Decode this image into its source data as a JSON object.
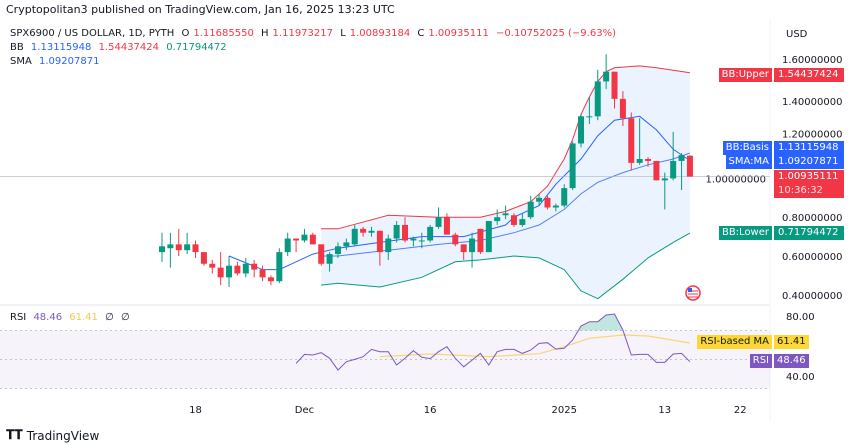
{
  "header": {
    "publisher": "Cryptopolitan3 published on TradingView.com, Jan 16, 2025 13:23 UTC",
    "symbol": "SPX6900 / US DOLLAR, 1D, PYTH",
    "open_label": "O",
    "open": "1.11685550",
    "high_label": "H",
    "high": "1.11973217",
    "low_label": "L",
    "low": "1.00893184",
    "close_label": "C",
    "close": "1.00935111",
    "change": "−0.10752025 (−9.63%)",
    "bb_label": "BB",
    "bb_basis": "1.13115948",
    "bb_upper": "1.54437424",
    "bb_lower": "0.71794472",
    "sma_label": "SMA",
    "sma": "1.09207871"
  },
  "currency": "USD",
  "price_axis": [
    "1.60000000",
    "1.40000000",
    "1.20000000",
    "1.00000000",
    "0.80000000",
    "0.60000000",
    "0.40000000"
  ],
  "badges": {
    "bb_upper": {
      "label": "BB:Upper",
      "value": "1.54437424"
    },
    "bb_basis": {
      "label": "BB:Basis",
      "value": "1.13115948"
    },
    "sma": {
      "label": "SMA:MA",
      "value": "1.09207871"
    },
    "price": {
      "value": "1.00935111",
      "countdown": "10:36:32"
    },
    "bb_lower": {
      "label": "BB:Lower",
      "value": "0.71794472"
    },
    "rsi_ma": {
      "label": "RSI-based MA",
      "value": "61.41"
    },
    "rsi": {
      "label": "RSI",
      "value": "48.46"
    }
  },
  "rsi_legend": {
    "label": "RSI",
    "rsi": "48.46",
    "ma": "61.41",
    "x1": "∅",
    "x2": "∅"
  },
  "rsi_axis": [
    "80.00",
    "40.00"
  ],
  "time_axis": [
    {
      "date": "2024-11-18",
      "label": "18"
    },
    {
      "date": "2024-12-01",
      "label": "Dec"
    },
    {
      "date": "2024-12-16",
      "label": "16"
    },
    {
      "date": "2025-01-01",
      "label": "2025"
    },
    {
      "date": "2025-01-13",
      "label": "13"
    },
    {
      "date": "2025-01-22",
      "label": "22"
    }
  ],
  "branding": "TradingView",
  "colors": {
    "up": "#089981",
    "down": "#f23645",
    "bb_upper": "#f23645",
    "bb_lower": "#089981",
    "bb_basis": "#2962ff",
    "sma": "#2962ff",
    "band_fill": "#e3effd",
    "rsi": "#7e57c2",
    "rsi_ma": "#f7d774",
    "rsi_badge": "#7e57c2",
    "rsi_ma_badge": "#fdd835"
  },
  "chart_data": [
    {
      "type": "candlestick",
      "title": "SPX6900 / US DOLLAR, 1D, PYTH",
      "ylabel": "USD",
      "ylim": [
        0.35,
        1.7
      ],
      "columns": [
        "date",
        "open",
        "high",
        "low",
        "close"
      ],
      "candles": [
        [
          "2024-11-14",
          0.62,
          0.72,
          0.57,
          0.65
        ],
        [
          "2024-11-15",
          0.64,
          0.72,
          0.54,
          0.66
        ],
        [
          "2024-11-16",
          0.66,
          0.74,
          0.6,
          0.63
        ],
        [
          "2024-11-17",
          0.63,
          0.72,
          0.61,
          0.66
        ],
        [
          "2024-11-18",
          0.66,
          0.68,
          0.59,
          0.62
        ],
        [
          "2024-11-19",
          0.62,
          0.62,
          0.55,
          0.56
        ],
        [
          "2024-11-20",
          0.56,
          0.58,
          0.51,
          0.54
        ],
        [
          "2024-11-21",
          0.54,
          0.62,
          0.45,
          0.49
        ],
        [
          "2024-11-22",
          0.49,
          0.6,
          0.44,
          0.55
        ],
        [
          "2024-11-23",
          0.55,
          0.57,
          0.5,
          0.51
        ],
        [
          "2024-11-24",
          0.51,
          0.59,
          0.49,
          0.56
        ],
        [
          "2024-11-25",
          0.56,
          0.58,
          0.49,
          0.53
        ],
        [
          "2024-11-26",
          0.53,
          0.55,
          0.47,
          0.49
        ],
        [
          "2024-11-27",
          0.49,
          0.5,
          0.45,
          0.47
        ],
        [
          "2024-11-28",
          0.47,
          0.64,
          0.46,
          0.62
        ],
        [
          "2024-11-29",
          0.62,
          0.72,
          0.6,
          0.69
        ],
        [
          "2024-11-30",
          0.69,
          0.69,
          0.62,
          0.68
        ],
        [
          "2024-12-01",
          0.68,
          0.74,
          0.67,
          0.71
        ],
        [
          "2024-12-02",
          0.71,
          0.72,
          0.66,
          0.66
        ],
        [
          "2024-12-03",
          0.66,
          0.66,
          0.55,
          0.56
        ],
        [
          "2024-12-04",
          0.56,
          0.62,
          0.52,
          0.61
        ],
        [
          "2024-12-05",
          0.61,
          0.67,
          0.59,
          0.65
        ],
        [
          "2024-12-06",
          0.65,
          0.69,
          0.63,
          0.67
        ],
        [
          "2024-12-07",
          0.66,
          0.76,
          0.65,
          0.74
        ],
        [
          "2024-12-08",
          0.74,
          0.75,
          0.7,
          0.72
        ],
        [
          "2024-12-09",
          0.72,
          0.75,
          0.7,
          0.73
        ],
        [
          "2024-12-10",
          0.73,
          0.73,
          0.55,
          0.62
        ],
        [
          "2024-12-11",
          0.62,
          0.71,
          0.58,
          0.69
        ],
        [
          "2024-12-12",
          0.69,
          0.78,
          0.67,
          0.76
        ],
        [
          "2024-12-13",
          0.76,
          0.8,
          0.67,
          0.68
        ],
        [
          "2024-12-14",
          0.68,
          0.7,
          0.65,
          0.69
        ],
        [
          "2024-12-15",
          0.68,
          0.72,
          0.64,
          0.68
        ],
        [
          "2024-12-16",
          0.68,
          0.76,
          0.67,
          0.75
        ],
        [
          "2024-12-17",
          0.75,
          0.85,
          0.74,
          0.8
        ],
        [
          "2024-12-18",
          0.8,
          0.82,
          0.71,
          0.71
        ],
        [
          "2024-12-19",
          0.71,
          0.72,
          0.65,
          0.66
        ],
        [
          "2024-12-20",
          0.66,
          0.66,
          0.58,
          0.62
        ],
        [
          "2024-12-21",
          0.62,
          0.72,
          0.54,
          0.69
        ],
        [
          "2024-12-22",
          0.74,
          0.74,
          0.61,
          0.62
        ],
        [
          "2024-12-23",
          0.62,
          0.78,
          0.62,
          0.78
        ],
        [
          "2024-12-24",
          0.78,
          0.84,
          0.76,
          0.8
        ],
        [
          "2024-12-25",
          0.81,
          0.86,
          0.79,
          0.82
        ],
        [
          "2024-12-26",
          0.81,
          0.82,
          0.75,
          0.76
        ],
        [
          "2024-12-27",
          0.76,
          0.82,
          0.75,
          0.79
        ],
        [
          "2024-12-28",
          0.8,
          0.91,
          0.79,
          0.88
        ],
        [
          "2024-12-29",
          0.88,
          0.92,
          0.86,
          0.9
        ],
        [
          "2024-12-30",
          0.9,
          0.91,
          0.84,
          0.85
        ],
        [
          "2024-12-31",
          0.85,
          0.87,
          0.83,
          0.86
        ],
        [
          "2025-01-01",
          0.86,
          0.97,
          0.85,
          0.95
        ],
        [
          "2025-01-02",
          0.95,
          1.19,
          0.94,
          1.18
        ],
        [
          "2025-01-03",
          1.18,
          1.33,
          1.16,
          1.32
        ],
        [
          "2025-01-04",
          1.32,
          1.42,
          1.28,
          1.32
        ],
        [
          "2025-01-05",
          1.32,
          1.56,
          1.3,
          1.5
        ],
        [
          "2025-01-06",
          1.5,
          1.64,
          1.46,
          1.55
        ],
        [
          "2025-01-07",
          1.55,
          1.55,
          1.36,
          1.41
        ],
        [
          "2025-01-08",
          1.41,
          1.45,
          1.27,
          1.31
        ],
        [
          "2025-01-09",
          1.31,
          1.34,
          1.04,
          1.08
        ],
        [
          "2025-01-10",
          1.08,
          1.31,
          1.07,
          1.1
        ],
        [
          "2025-01-11",
          1.1,
          1.11,
          1.06,
          1.09
        ],
        [
          "2025-01-12",
          1.09,
          1.09,
          0.99,
          0.99
        ],
        [
          "2025-01-13",
          0.99,
          1.03,
          0.84,
          1.0
        ],
        [
          "2025-01-14",
          1.0,
          1.24,
          0.99,
          1.09
        ],
        [
          "2025-01-15",
          1.09,
          1.13,
          0.94,
          1.12
        ],
        [
          "2025-01-16",
          1.1168555,
          1.11973217,
          1.00893184,
          1.00935111
        ]
      ],
      "bb_upper": [
        [
          "2024-12-03",
          0.74
        ],
        [
          "2024-12-05",
          0.74
        ],
        [
          "2024-12-11",
          0.81
        ],
        [
          "2024-12-17",
          0.8
        ],
        [
          "2024-12-22",
          0.8
        ],
        [
          "2024-12-25",
          0.83
        ],
        [
          "2024-12-28",
          0.88
        ],
        [
          "2024-12-30",
          0.96
        ],
        [
          "2025-01-01",
          1.1
        ],
        [
          "2025-01-02",
          1.2
        ],
        [
          "2025-01-03",
          1.33
        ],
        [
          "2025-01-04",
          1.42
        ],
        [
          "2025-01-05",
          1.5
        ],
        [
          "2025-01-06",
          1.55
        ],
        [
          "2025-01-07",
          1.57
        ],
        [
          "2025-01-10",
          1.58
        ],
        [
          "2025-01-12",
          1.57
        ],
        [
          "2025-01-16",
          1.54437424
        ]
      ],
      "bb_lower": [
        [
          "2024-12-03",
          0.45
        ],
        [
          "2024-12-05",
          0.46
        ],
        [
          "2024-12-10",
          0.44
        ],
        [
          "2024-12-15",
          0.49
        ],
        [
          "2024-12-19",
          0.57
        ],
        [
          "2024-12-22",
          0.58
        ],
        [
          "2024-12-26",
          0.6
        ],
        [
          "2024-12-29",
          0.59
        ],
        [
          "2025-01-01",
          0.53
        ],
        [
          "2025-01-03",
          0.42
        ],
        [
          "2025-01-05",
          0.38
        ],
        [
          "2025-01-08",
          0.48
        ],
        [
          "2025-01-11",
          0.59
        ],
        [
          "2025-01-14",
          0.67
        ],
        [
          "2025-01-16",
          0.71794472
        ]
      ],
      "bb_basis": [
        [
          "2024-12-03",
          0.6
        ],
        [
          "2024-12-05",
          0.6
        ],
        [
          "2024-12-11",
          0.63
        ],
        [
          "2024-12-17",
          0.66
        ],
        [
          "2024-12-22",
          0.68
        ],
        [
          "2024-12-26",
          0.72
        ],
        [
          "2024-12-29",
          0.76
        ],
        [
          "2025-01-01",
          0.84
        ],
        [
          "2025-01-03",
          0.92
        ],
        [
          "2025-01-05",
          0.98
        ],
        [
          "2025-01-08",
          1.03
        ],
        [
          "2025-01-11",
          1.07
        ],
        [
          "2025-01-14",
          1.1
        ],
        [
          "2025-01-16",
          1.13115948
        ]
      ],
      "sma": [
        [
          "2024-11-22",
          0.6
        ],
        [
          "2024-11-26",
          0.53
        ],
        [
          "2024-11-28",
          0.53
        ],
        [
          "2024-11-30",
          0.57
        ],
        [
          "2024-12-02",
          0.61
        ],
        [
          "2024-12-05",
          0.64
        ],
        [
          "2024-12-10",
          0.67
        ],
        [
          "2024-12-15",
          0.7
        ],
        [
          "2024-12-20",
          0.7
        ],
        [
          "2024-12-25",
          0.76
        ],
        [
          "2024-12-26",
          0.8
        ],
        [
          "2024-12-29",
          0.86
        ],
        [
          "2024-12-31",
          0.97
        ],
        [
          "2025-01-03",
          1.1
        ],
        [
          "2025-01-05",
          1.22
        ],
        [
          "2025-01-07",
          1.3
        ],
        [
          "2025-01-10",
          1.32
        ],
        [
          "2025-01-12",
          1.25
        ],
        [
          "2025-01-14",
          1.15
        ],
        [
          "2025-01-16",
          1.09207871
        ]
      ]
    },
    {
      "type": "line",
      "title": "RSI",
      "ylim": [
        20,
        85
      ],
      "bands": {
        "upper": 70,
        "middle": 50,
        "lower": 30
      },
      "rsi_aligned_to_last_candles": [
        47.3,
        53.5,
        53.1,
        54.7,
        50.8,
        42.7,
        48.5,
        50.1,
        51.9,
        57.0,
        55.4,
        55.4,
        46.2,
        50.8,
        56.1,
        51.5,
        50.6,
        55.4,
        58.8,
        50.8,
        45.0,
        49.6,
        54.2,
        46.2,
        55.4,
        57.0,
        57.0,
        54.2,
        56.5,
        61.1,
        61.6,
        57.2,
        57.7,
        63.4,
        73.1,
        76.1,
        76.1,
        80.7,
        81.4,
        70.3,
        53.1,
        53.5,
        53.5,
        48.0,
        48.0,
        53.8,
        54.2,
        48.46
      ],
      "rsi_ma": [
        [
          "2024-12-10",
          52
        ],
        [
          "2024-12-16",
          53.8
        ],
        [
          "2024-12-23",
          52
        ],
        [
          "2024-12-29",
          54
        ],
        [
          "2025-01-01",
          58.8
        ],
        [
          "2025-01-04",
          64.6
        ],
        [
          "2025-01-08",
          66.9
        ],
        [
          "2025-01-11",
          66.2
        ],
        [
          "2025-01-16",
          61.41
        ]
      ]
    }
  ]
}
